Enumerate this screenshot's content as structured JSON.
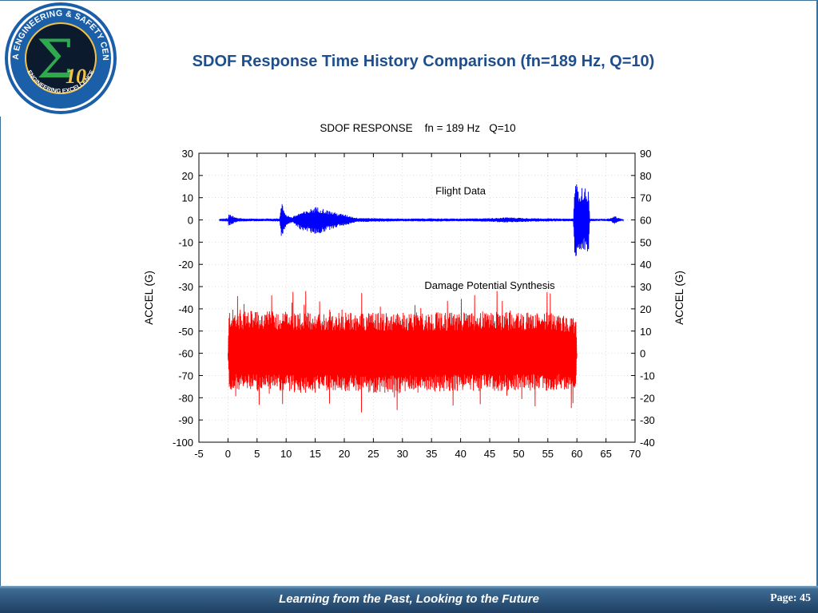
{
  "slide": {
    "title": "SDOF Response Time History Comparison (fn=189 Hz, Q=10)",
    "footer": "Learning from the Past, Looking to the Future",
    "page": "Page: 45"
  },
  "logo": {
    "ring_text": "NASA ENGINEERING & SAFETY CENTER",
    "bottom_text": "ENGINEERING EXCELLENCE",
    "emblem": "Σ",
    "emblem_num": "10",
    "colors": {
      "ring": "#1a5fa8",
      "core": "#0b1a2c",
      "emblem": "#2fa84f",
      "accent": "#f0c24b"
    }
  },
  "chart_data": {
    "type": "line",
    "title": "SDOF RESPONSE    fn = 189 Hz   Q=10",
    "xlabel": "",
    "ylabel": "ACCEL (G)",
    "ylabel_right": "ACCEL (G)",
    "xlim": [
      -5,
      70
    ],
    "ylim": [
      -100,
      30
    ],
    "ylim_right": [
      -40,
      90
    ],
    "xticks": [
      -5,
      0,
      5,
      10,
      15,
      20,
      25,
      30,
      35,
      40,
      45,
      50,
      55,
      60,
      65,
      70
    ],
    "yticks": [
      30,
      20,
      10,
      0,
      -10,
      -20,
      -30,
      -40,
      -50,
      -60,
      -70,
      -80,
      -90,
      -100
    ],
    "yticks_right": [
      90,
      80,
      70,
      60,
      50,
      40,
      30,
      20,
      10,
      0,
      -10,
      -20,
      -30,
      -40
    ],
    "grid": true,
    "series": [
      {
        "name": "Flight Data",
        "axis": "left",
        "color": "#0000ff",
        "envelope": {
          "t": [
            -1.5,
            0,
            0.1,
            0.5,
            1.5,
            3,
            6,
            8.9,
            9.2,
            10,
            11,
            11.8,
            12.5,
            13.5,
            14.2,
            15,
            16,
            17,
            18,
            19,
            20,
            21,
            22,
            25,
            30,
            35,
            40,
            45,
            48,
            50,
            52,
            55,
            57,
            59.4,
            59.6,
            59.9,
            60.3,
            60.7,
            61.3,
            61.7,
            62.0,
            62.2,
            63,
            64,
            65,
            66,
            66.5,
            67,
            68
          ],
          "upper": [
            0.2,
            0.3,
            2.6,
            2.2,
            0.9,
            0.6,
            0.6,
            0.7,
            8.0,
            2.5,
            1.2,
            2.5,
            3.5,
            4.0,
            5.0,
            6.0,
            5.5,
            4.5,
            3.8,
            3.0,
            2.5,
            1.8,
            1.0,
            0.8,
            0.6,
            0.7,
            0.6,
            0.8,
            1.2,
            1.0,
            0.8,
            0.7,
            0.6,
            0.6,
            17.0,
            16.5,
            15.0,
            14.5,
            14.5,
            14.0,
            13.5,
            0.6,
            0.5,
            0.5,
            0.5,
            0.9,
            2.0,
            1.0,
            0.2
          ],
          "lower": [
            -0.2,
            -0.3,
            -2.6,
            -2.2,
            -0.9,
            -0.6,
            -0.6,
            -0.7,
            -8.0,
            -2.5,
            -1.2,
            -3.0,
            -4.5,
            -5.0,
            -6.0,
            -6.5,
            -6.0,
            -5.0,
            -4.0,
            -3.0,
            -2.5,
            -1.8,
            -1.0,
            -0.8,
            -0.6,
            -0.7,
            -0.6,
            -0.8,
            -1.2,
            -1.0,
            -0.8,
            -0.7,
            -0.6,
            -0.6,
            -17.0,
            -16.5,
            -15.5,
            -15.0,
            -14.5,
            -14.5,
            -14.0,
            -0.6,
            -0.5,
            -0.5,
            -0.5,
            -0.9,
            -2.0,
            -1.0,
            -0.2
          ]
        }
      },
      {
        "name": "Damage Potential Synthesis",
        "axis": "right",
        "color": "#ff0000",
        "envelope": {
          "t": [
            0,
            0.2,
            5,
            10,
            15,
            20,
            25,
            30,
            35,
            40,
            45,
            50,
            55,
            59.8,
            60
          ],
          "upper": [
            0,
            20.0,
            19.0,
            19.0,
            18.5,
            18.5,
            18.5,
            18.5,
            18.5,
            18.5,
            19.0,
            18.5,
            18.5,
            16.0,
            0
          ],
          "lower": [
            0,
            -17.0,
            -17.0,
            -17.5,
            -18.0,
            -17.0,
            -18.0,
            -18.0,
            -17.5,
            -17.0,
            -17.0,
            -17.0,
            -17.0,
            -16.0,
            0
          ],
          "peak_max": 28,
          "peak_min": -30
        }
      }
    ],
    "annotations": [
      {
        "text": "Flight Data",
        "x": 40,
        "y": 11.5,
        "axis": "left"
      },
      {
        "text": "Damage Potential Synthesis",
        "x": 45,
        "y": 29,
        "axis": "right"
      }
    ]
  }
}
